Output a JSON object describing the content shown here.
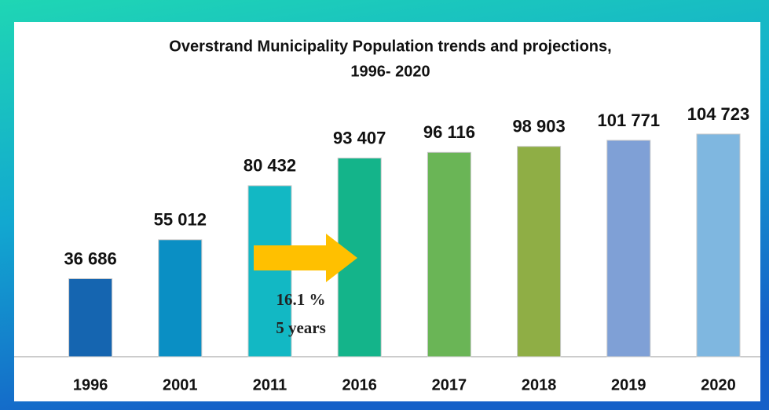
{
  "chart_data": {
    "type": "bar",
    "title": [
      "Overstrand Municipality Population trends and projections,",
      "1996- 2020"
    ],
    "categories": [
      "1996",
      "2001",
      "2011",
      "2016",
      "2017",
      "2018",
      "2019",
      "2020"
    ],
    "values": [
      36686,
      55012,
      80432,
      93407,
      96116,
      98903,
      101771,
      104723
    ],
    "value_labels": [
      "36 686",
      "55 012",
      "80 432",
      "93 407",
      "96 116",
      "98 903",
      "101 771",
      "104 723"
    ],
    "colors": [
      "#1565b0",
      "#0a8fc4",
      "#12b8c4",
      "#14b48a",
      "#6ab556",
      "#8fae45",
      "#7fa0d6",
      "#7fb7e0"
    ],
    "annotations": [
      "16.1 %",
      "5 years"
    ]
  }
}
